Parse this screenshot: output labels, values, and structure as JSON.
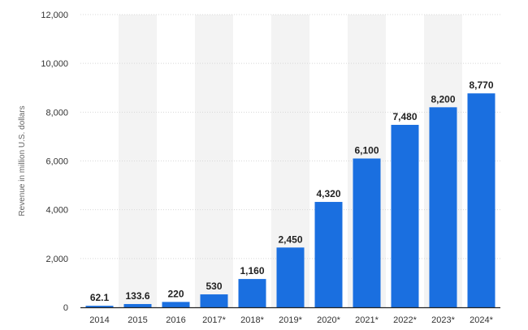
{
  "chart_data": {
    "type": "bar",
    "ylabel": "Revenue in million U.S. dollars",
    "ylim": [
      0,
      12000
    ],
    "yticks": [
      0,
      2000,
      4000,
      6000,
      8000,
      10000,
      12000
    ],
    "ytick_labels": [
      "0",
      "2,000",
      "4,000",
      "6,000",
      "8,000",
      "10,000",
      "12,000"
    ],
    "categories": [
      "2014",
      "2015",
      "2016",
      "2017*",
      "2018*",
      "2019*",
      "2020*",
      "2021*",
      "2022*",
      "2023*",
      "2024*"
    ],
    "values": [
      62.1,
      133.6,
      220,
      530,
      1160,
      2450,
      4320,
      6100,
      7480,
      8200,
      8770
    ],
    "value_labels": [
      "62.1",
      "133.6",
      "220",
      "530",
      "1,160",
      "2,450",
      "4,320",
      "6,100",
      "7,480",
      "8,200",
      "8,770"
    ],
    "bar_color": "#1a6fe0",
    "grid": true,
    "alternating_bands": true
  }
}
